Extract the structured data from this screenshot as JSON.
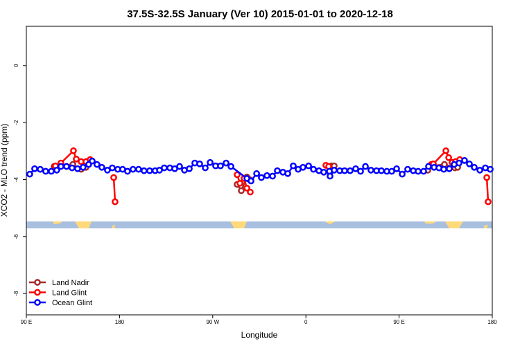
{
  "chart_data": {
    "type": "line",
    "title": "37.5S-32.5S January (Ver 10)   2015-01-01 to 2020-12-18",
    "x_label": "Longitude",
    "y_label": "XCO2 - MLO trend (ppm)",
    "xlim": [
      90,
      540
    ],
    "xticks": [
      {
        "value": 90,
        "label": "90 E"
      },
      180,
      {
        "value": 270,
        "label": "90 W"
      },
      {
        "value": 360,
        "label": "0"
      },
      {
        "value": 450,
        "label": "90 E"
      },
      {
        "value": 540,
        "label": "180"
      }
    ],
    "ylim": [
      -8.75,
      1.38
    ],
    "yticks": [
      0,
      -2,
      -4,
      -6,
      -8
    ],
    "legend": "bottom-left",
    "series": [
      {
        "name": "Land Nadir",
        "color": "#a52a2a",
        "x": [
          116.8,
          134.9,
          142.9,
          147.6,
          null,
          293.6,
          297.6,
          303.0,
          305.6,
          null,
          384.7,
          387.3,
          null,
          477.8,
          481.8,
          493.8,
          503.9,
          506.6
        ],
        "values": [
          -3.54,
          -3.47,
          -3.64,
          -3.57,
          null,
          -4.17,
          -4.39,
          -3.91,
          -4.0,
          null,
          -3.52,
          -3.52,
          null,
          -3.67,
          -3.52,
          -3.47,
          -3.59,
          -3.57
        ]
      },
      {
        "name": "Land Glint",
        "color": "#ff0000",
        "x": [
          118.1,
          123.4,
          135.5,
          138.2,
          142.9,
          147.6,
          151.6,
          null,
          174.4,
          175.7,
          null,
          293.6,
          296.3,
          300.3,
          303.0,
          306.3,
          null,
          379.3,
          382.0,
          null,
          481.1,
          483.1,
          495.2,
          497.9,
          501.2,
          504.5,
          508.6,
          null,
          534.7,
          536.0
        ],
        "values": [
          -3.52,
          -3.42,
          -2.99,
          -3.28,
          -3.37,
          -3.37,
          -3.3,
          null,
          -3.93,
          -4.78,
          null,
          -3.83,
          -4.13,
          -3.96,
          -4.3,
          -4.44,
          null,
          -3.5,
          -3.54,
          null,
          -3.47,
          -3.45,
          -2.99,
          -3.23,
          -3.4,
          -3.37,
          -3.3,
          null,
          -3.93,
          -4.78
        ]
      },
      {
        "name": "Ocean Glint",
        "color": "#0000ff",
        "x": [
          93.3,
          98.0,
          103.4,
          108.7,
          114.1,
          119.4,
          123.4,
          128.8,
          134.1,
          139.5,
          144.8,
          150.2,
          153.6,
          158.2,
          162.9,
          168.3,
          173.0,
          178.3,
          183.0,
          187.7,
          193.0,
          198.4,
          203.7,
          209.1,
          214.4,
          218.6,
          223.2,
          228.6,
          233.3,
          238.0,
          242.7,
          247.4,
          252.7,
          257.4,
          262.8,
          267.5,
          272.8,
          277.5,
          282.9,
          287.6,
          303.0,
          307.0,
          312.4,
          317.0,
          322.4,
          327.8,
          332.4,
          337.8,
          342.5,
          347.8,
          352.5,
          357.2,
          362.6,
          367.3,
          372.6,
          377.3,
          382.7,
          383.3,
          387.3,
          392.7,
          397.4,
          402.7,
          408.1,
          412.8,
          417.5,
          422.8,
          428.2,
          432.9,
          438.2,
          442.9,
          447.6,
          453.0,
          458.3,
          463.7,
          468.4,
          473.7,
          478.4,
          483.8,
          488.5,
          493.2,
          498.5,
          503.2,
          507.9,
          513.2,
          517.9,
          522.6,
          528.0,
          533.3,
          538.0
        ],
        "values": [
          -3.81,
          -3.62,
          -3.64,
          -3.71,
          -3.71,
          -3.67,
          -3.54,
          -3.54,
          -3.59,
          -3.62,
          -3.57,
          -3.47,
          -3.35,
          -3.47,
          -3.57,
          -3.67,
          -3.59,
          -3.64,
          -3.64,
          -3.71,
          -3.64,
          -3.64,
          -3.69,
          -3.69,
          -3.69,
          -3.67,
          -3.59,
          -3.59,
          -3.62,
          -3.54,
          -3.67,
          -3.62,
          -3.42,
          -3.45,
          -3.59,
          -3.4,
          -3.52,
          -3.52,
          -3.42,
          -3.54,
          -3.96,
          -4.05,
          -3.79,
          -3.93,
          -3.86,
          -3.88,
          -3.69,
          -3.74,
          -3.79,
          -3.52,
          -3.64,
          -3.57,
          -3.52,
          -3.64,
          -3.69,
          -3.74,
          -3.71,
          -3.88,
          -3.67,
          -3.69,
          -3.69,
          -3.69,
          -3.62,
          -3.71,
          -3.54,
          -3.67,
          -3.69,
          -3.69,
          -3.71,
          -3.71,
          -3.62,
          -3.81,
          -3.64,
          -3.69,
          -3.71,
          -3.71,
          -3.54,
          -3.57,
          -3.59,
          -3.64,
          -3.62,
          -3.47,
          -3.42,
          -3.33,
          -3.45,
          -3.57,
          -3.67,
          -3.59,
          -3.64
        ]
      }
    ]
  }
}
